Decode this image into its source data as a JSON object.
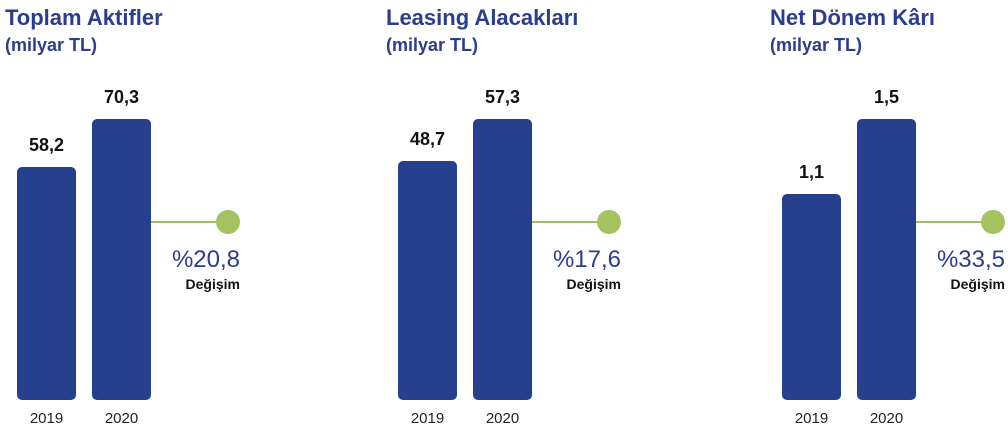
{
  "colors": {
    "bar": "#26408e",
    "title": "#2b3d8f",
    "connector": "#9cc257",
    "dot": "#a2c35f"
  },
  "chart_data": [
    {
      "type": "bar",
      "title": "Toplam Aktifler",
      "subtitle": "(milyar TL)",
      "categories": [
        "2019",
        "2020"
      ],
      "values": [
        58.2,
        70.3
      ],
      "value_labels": [
        "58,2",
        "70,3"
      ],
      "change": "%20,8",
      "change_label": "Değişim"
    },
    {
      "type": "bar",
      "title": "Leasing Alacakları",
      "subtitle": "(milyar TL)",
      "categories": [
        "2019",
        "2020"
      ],
      "values": [
        48.7,
        57.3
      ],
      "value_labels": [
        "48,7",
        "57,3"
      ],
      "change": "%17,6",
      "change_label": "Değişim"
    },
    {
      "type": "bar",
      "title": "Net Dönem Kârı",
      "subtitle": "(milyar TL)",
      "categories": [
        "2019",
        "2020"
      ],
      "values": [
        1.1,
        1.5
      ],
      "value_labels": [
        "1,1",
        "1,5"
      ],
      "change": "%33,5",
      "change_label": "Değişim"
    }
  ]
}
